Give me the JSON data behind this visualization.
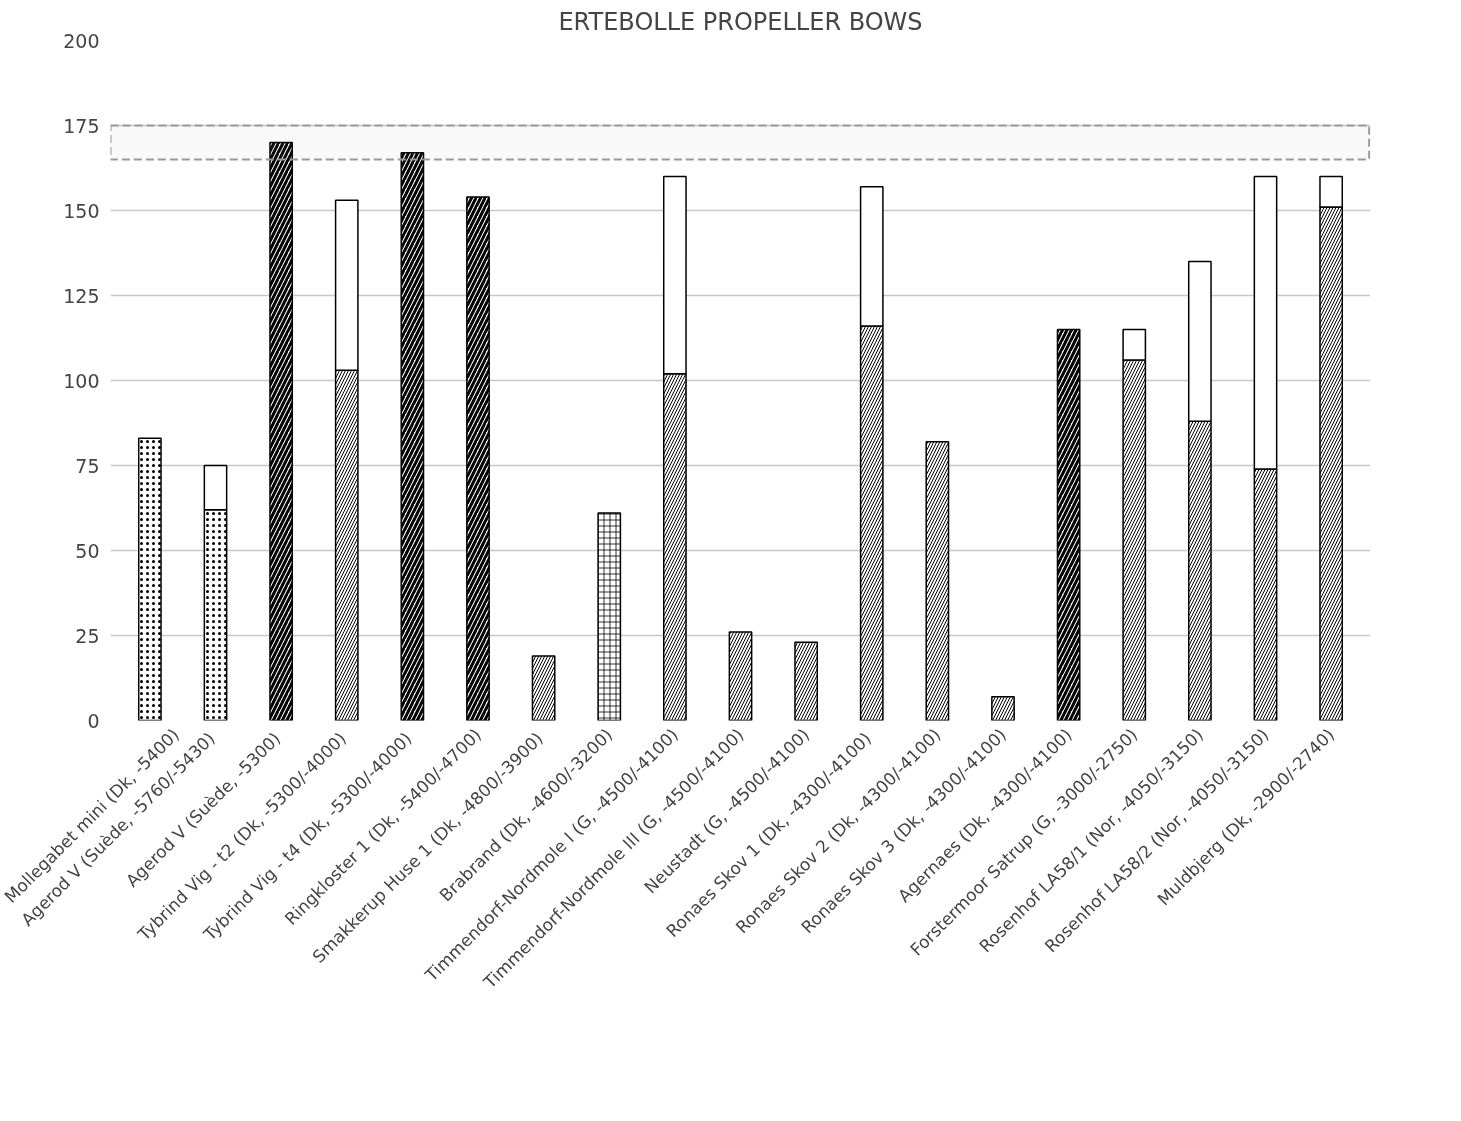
{
  "chart_data": {
    "type": "bar",
    "title": "ERTEBOLLE PROPELLER BOWS",
    "stacked": true,
    "categories": [
      "Mollegabet mini (Dk, -5400)",
      "Agerod V  (Suède, -5760/-5430)",
      "Agerod V  (Suède, -5300)",
      "Tybrind Vig - t2  (Dk, -5300/-4000)",
      "Tybrind Vig - t4  (Dk, -5300/-4000)",
      "Ringkloster 1 (Dk, -5400/-4700)",
      "Smakkerup Huse 1  (Dk, -4800/-3900)",
      "Brabrand (Dk, -4600/-3200)",
      "Timmendorf-Nordmole I (G, -4500/-4100)",
      "Timmendorf-Nordmole III (G, -4500/-4100)",
      "Neustadt (G, -4500/-4100)",
      "Ronaes Skov 1  (Dk, -4300/-4100)",
      "Ronaes Skov 2 (Dk, -4300/-4100)",
      "Ronaes Skov 3 (Dk, -4300/-4100)",
      "Agernaes (Dk, -4300/-4100)",
      "Forstermoor Satrup (G, -3000/-2750)",
      "Rosenhof LA58/1 (Nor, -4050/-3150)",
      "Rosenhof LA58/2 (Nor, -4050/-3150)",
      "Muldbjerg (Dk, -2900/-2740)"
    ],
    "series": [
      {
        "color": "#ffffff",
        "values": [
          83,
          62,
          null,
          null,
          null,
          null,
          null,
          null,
          null,
          null,
          null,
          null,
          null,
          null,
          null,
          null,
          null,
          null,
          null
        ]
      },
      {
        "color": "#ffffff",
        "values": [
          null,
          null,
          170,
          null,
          167,
          154,
          null,
          null,
          null,
          null,
          null,
          null,
          null,
          null,
          115,
          null,
          null,
          null,
          null
        ]
      },
      {
        "color": "#ffffff",
        "values": [
          null,
          null,
          null,
          103,
          null,
          null,
          19,
          null,
          102,
          26,
          23,
          116,
          82,
          7,
          null,
          106,
          88,
          74,
          151
        ]
      },
      {
        "color": "#ffffff",
        "values": [
          null,
          null,
          null,
          null,
          null,
          null,
          null,
          61,
          null,
          null,
          null,
          null,
          null,
          null,
          null,
          null,
          null,
          null,
          null
        ]
      },
      {
        "color": "#ffffff",
        "values": [
          null,
          13,
          null,
          50,
          null,
          null,
          null,
          null,
          58,
          null,
          null,
          41,
          null,
          null,
          null,
          9,
          47,
          86,
          9
        ]
      }
    ],
    "ylim": [
      0,
      200
    ],
    "yticks": [
      0,
      25,
      50,
      75,
      100,
      125,
      150,
      175,
      200
    ],
    "grid": "y",
    "bands": [
      {
        "axis": "y",
        "from": 165,
        "to": 175,
        "color": "#999999"
      }
    ]
  }
}
